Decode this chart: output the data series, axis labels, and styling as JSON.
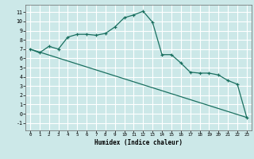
{
  "xlabel": "Humidex (Indice chaleur)",
  "bg_color": "#cce8e8",
  "grid_color": "#ffffff",
  "line_color": "#1a7060",
  "xlim": [
    -0.5,
    23.5
  ],
  "ylim": [
    -1.8,
    11.8
  ],
  "xticks": [
    0,
    1,
    2,
    3,
    4,
    5,
    6,
    7,
    8,
    9,
    10,
    11,
    12,
    13,
    14,
    15,
    16,
    17,
    18,
    19,
    20,
    21,
    22,
    23
  ],
  "yticks": [
    -1,
    0,
    1,
    2,
    3,
    4,
    5,
    6,
    7,
    8,
    9,
    10,
    11
  ],
  "line1_x": [
    0,
    1,
    2,
    3,
    4,
    5,
    6,
    7,
    8,
    9,
    10,
    11,
    12,
    13,
    14,
    15,
    16,
    17,
    18,
    19,
    20,
    21,
    22,
    23
  ],
  "line1_y": [
    7.0,
    6.6,
    7.3,
    7.0,
    8.3,
    8.6,
    8.6,
    8.5,
    8.7,
    9.4,
    10.4,
    10.7,
    11.1,
    9.9,
    6.4,
    6.4,
    5.5,
    4.5,
    4.4,
    4.4,
    4.2,
    3.6,
    3.2,
    -0.4
  ],
  "line2_x": [
    0,
    23
  ],
  "line2_y": [
    7.0,
    -0.4
  ]
}
